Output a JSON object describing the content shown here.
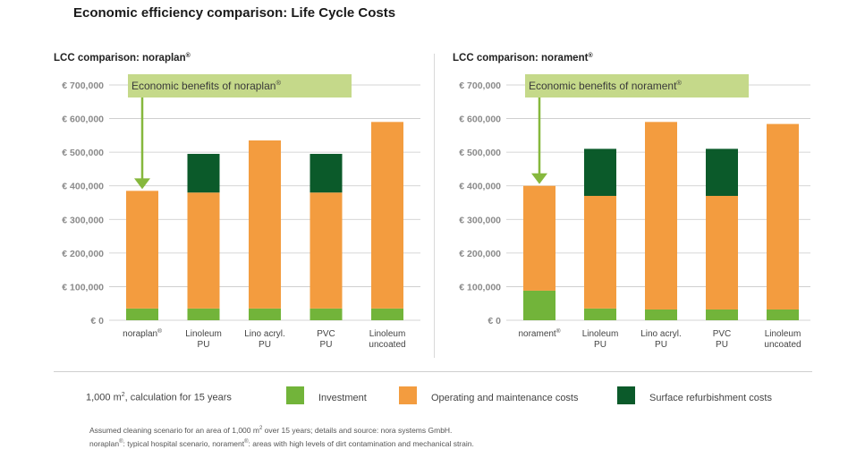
{
  "title": "Economic efficiency comparison: Life Cycle Costs",
  "colors": {
    "investment": "#72b43a",
    "operating": "#f39c3f",
    "refurbishment": "#0b5a2a",
    "annotation_bg": "#c5d98a",
    "arrow": "#86b83d",
    "grid": "#c8c8c8"
  },
  "chart_data": [
    {
      "type": "bar",
      "stacked": true,
      "title": "LCC comparison: noraplan",
      "title_sup": "®",
      "annotation": "Economic benefits of noraplan",
      "annotation_sup": "®",
      "ylim": [
        0,
        700000
      ],
      "yticks": [
        "€ 0",
        "€ 100,000",
        "€ 200,000",
        "€ 300,000",
        "€ 400,000",
        "€ 500,000",
        "€ 600,000",
        "€ 700,000"
      ],
      "categories": [
        {
          "line1": "noraplan",
          "sup": "®",
          "line2": ""
        },
        {
          "line1": "Linoleum",
          "sup": "",
          "line2": "PU"
        },
        {
          "line1": "Lino acryl.",
          "sup": "",
          "line2": "PU"
        },
        {
          "line1": "PVC",
          "sup": "",
          "line2": "PU"
        },
        {
          "line1": "Linoleum",
          "sup": "",
          "line2": "uncoated"
        }
      ],
      "series": [
        {
          "name": "Investment",
          "values": [
            35000,
            35000,
            35000,
            35000,
            35000
          ]
        },
        {
          "name": "Operating and maintenance costs",
          "values": [
            350000,
            345000,
            500000,
            345000,
            555000
          ]
        },
        {
          "name": "Surface refurbishment costs",
          "values": [
            0,
            115000,
            0,
            115000,
            0
          ]
        }
      ]
    },
    {
      "type": "bar",
      "stacked": true,
      "title": "LCC comparison: norament",
      "title_sup": "®",
      "annotation": "Economic benefits of norament",
      "annotation_sup": "®",
      "ylim": [
        0,
        700000
      ],
      "yticks": [
        "€ 0",
        "€ 100,000",
        "€ 200,000",
        "€ 300,000",
        "€ 400,000",
        "€ 500,000",
        "€ 600,000",
        "€ 700,000"
      ],
      "categories": [
        {
          "line1": "norament",
          "sup": "®",
          "line2": ""
        },
        {
          "line1": "Linoleum",
          "sup": "",
          "line2": "PU"
        },
        {
          "line1": "Lino acryl.",
          "sup": "",
          "line2": "PU"
        },
        {
          "line1": "PVC",
          "sup": "",
          "line2": "PU"
        },
        {
          "line1": "Linoleum",
          "sup": "",
          "line2": "uncoated"
        }
      ],
      "series": [
        {
          "name": "Investment",
          "values": [
            88000,
            35000,
            32000,
            32000,
            32000
          ]
        },
        {
          "name": "Operating and maintenance costs",
          "values": [
            312000,
            335000,
            558000,
            338000,
            552000
          ]
        },
        {
          "name": "Surface refurbishment costs",
          "values": [
            0,
            140000,
            0,
            140000,
            0
          ]
        }
      ]
    }
  ],
  "legend": {
    "calc_prefix": "1,000 m",
    "calc_sup": "2",
    "calc_suffix": ", calculation for 15 years",
    "items": [
      {
        "label": "Investment",
        "color": "#72b43a"
      },
      {
        "label": "Operating and maintenance costs",
        "color": "#f39c3f"
      },
      {
        "label": "Surface refurbishment costs",
        "color": "#0b5a2a"
      }
    ]
  },
  "footnotes": {
    "line1_a": "Assumed cleaning scenario for an area of 1,000 m",
    "line1_sup": "2",
    "line1_b": " over 15 years; details and source: nora systems GmbH.",
    "line2_a": "noraplan",
    "line2_sup1": "®",
    "line2_b": ": typical hospital scenario, norament",
    "line2_sup2": "®",
    "line2_c": ": areas with high levels of dirt contamination and mechanical strain."
  }
}
